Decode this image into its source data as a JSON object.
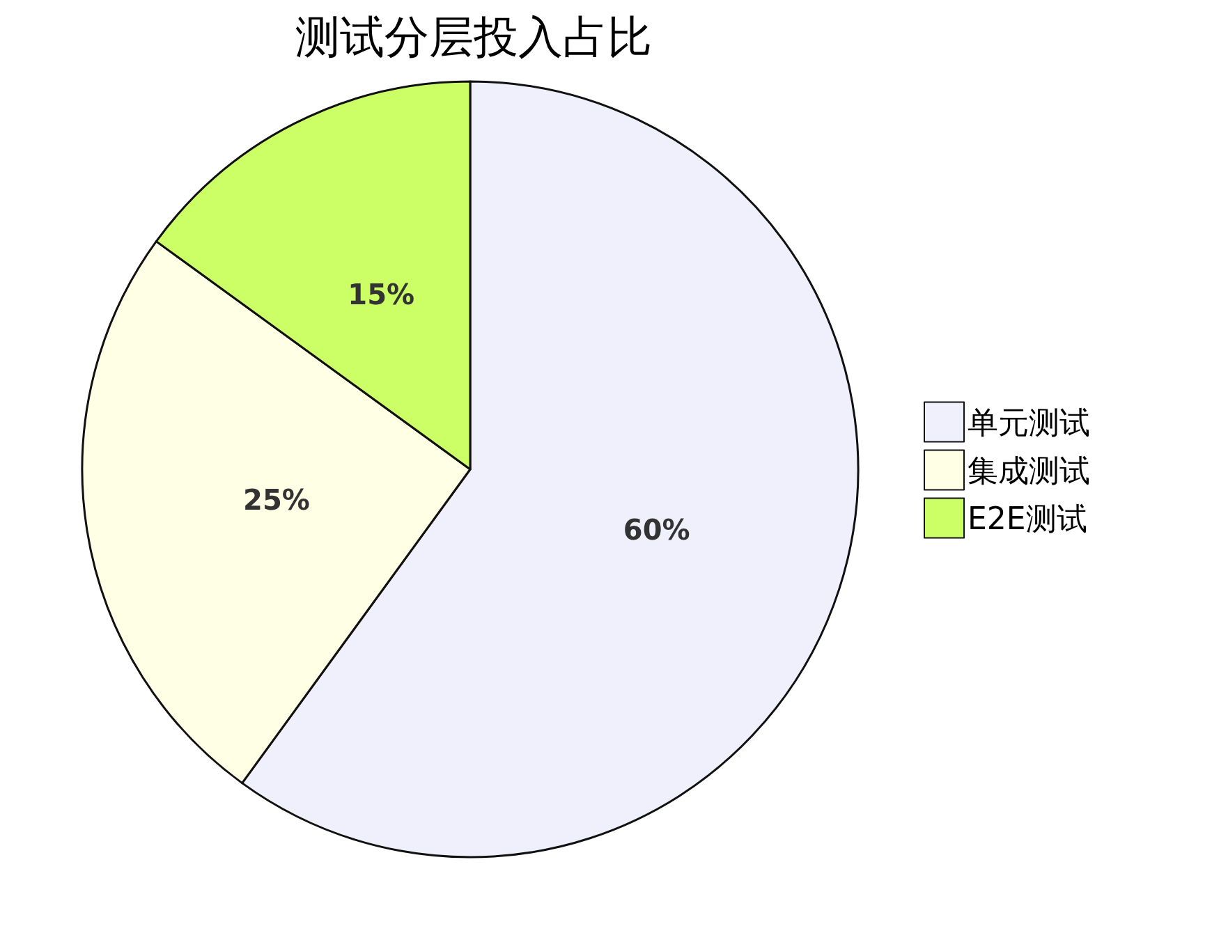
{
  "chart_data": {
    "type": "pie",
    "title": "测试分层投入占比",
    "categories": [
      "单元测试",
      "集成测试",
      "E2E测试"
    ],
    "values": [
      60,
      25,
      15
    ],
    "colors": [
      "#f0f0fc",
      "#ffffe6",
      "#ccff66"
    ],
    "value_labels": [
      "60%",
      "25%",
      "15%"
    ],
    "legend": "right"
  }
}
